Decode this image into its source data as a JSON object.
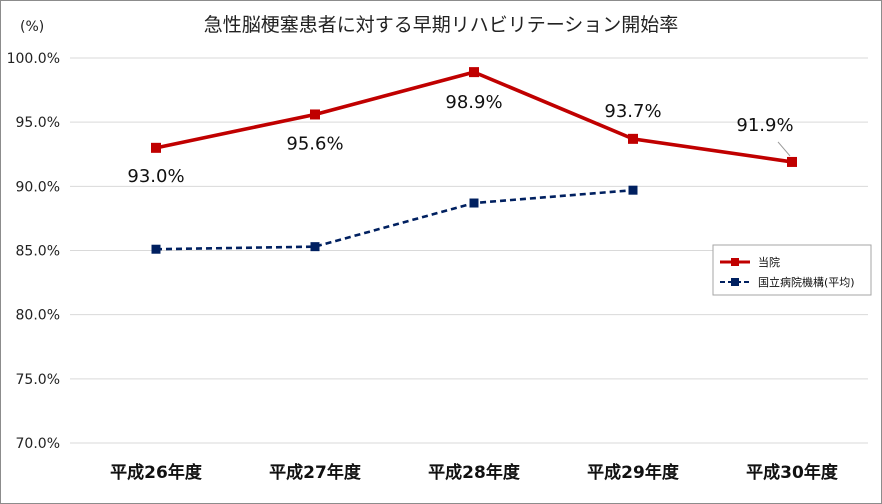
{
  "chart_data": {
    "type": "line",
    "title": "急性脳梗塞患者に対する早期リハビリテーション開始率",
    "unit_label": "(%)",
    "categories": [
      "平成26年度",
      "平成27年度",
      "平成28年度",
      "平成29年度",
      "平成30年度"
    ],
    "ylim": [
      70,
      100
    ],
    "yticks": [
      100,
      95,
      90,
      85,
      80,
      75,
      70
    ],
    "ytick_labels": [
      "100.0%",
      "95.0%",
      "90.0%",
      "85.0%",
      "80.0%",
      "75.0%",
      "70.0%"
    ],
    "grid": true,
    "legend_position": "right",
    "series": [
      {
        "name": "当院",
        "values": [
          93.0,
          95.6,
          98.9,
          93.7,
          91.9
        ],
        "data_labels": [
          "93.0%",
          "95.6%",
          "98.9%",
          "93.7%",
          "91.9%"
        ],
        "color": "#c00000",
        "line_style": "solid"
      },
      {
        "name": "国立病院機構(平均)",
        "values": [
          85.1,
          85.3,
          88.7,
          89.7,
          null
        ],
        "color": "#002060",
        "line_style": "dashed"
      }
    ]
  }
}
